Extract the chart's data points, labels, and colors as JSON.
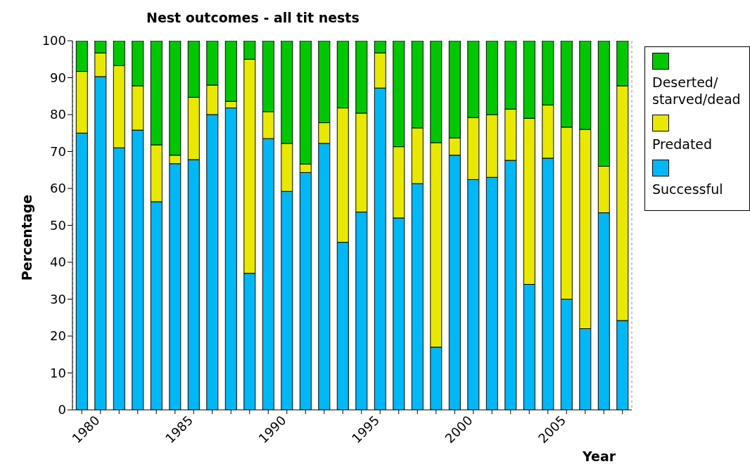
{
  "chart_data": {
    "type": "bar",
    "title": "Nest outcomes - all tit nests",
    "xlabel": "Year",
    "ylabel": "Percentage",
    "categories": [
      null,
      "1980",
      null,
      null,
      null,
      null,
      "1985",
      null,
      null,
      null,
      null,
      "1990",
      null,
      null,
      null,
      null,
      "1995",
      null,
      null,
      null,
      null,
      "2000",
      null,
      null,
      null,
      null,
      "2005",
      null,
      null,
      null
    ],
    "series": [
      {
        "name": "Successful",
        "color": "#00b8f5",
        "values": [
          75,
          90.3,
          71,
          75.8,
          56.4,
          66.7,
          67.8,
          80,
          81.8,
          37,
          73.5,
          59.2,
          64.3,
          72.2,
          45.4,
          53.6,
          87.2,
          52,
          61.3,
          17,
          69,
          62.4,
          63,
          67.6,
          34,
          68.2,
          30,
          22,
          53.4,
          24.2
        ]
      },
      {
        "name": "Predated",
        "color": "#e8e800",
        "values": [
          16.7,
          6.4,
          22.3,
          12,
          15.4,
          2.3,
          16.9,
          8,
          1.8,
          58,
          7.3,
          13,
          2.3,
          5.6,
          36.4,
          26.8,
          9.5,
          19.3,
          15.1,
          55.4,
          4.7,
          16.8,
          17,
          13.9,
          45,
          14.4,
          46.6,
          54,
          12.6,
          63.6
        ]
      },
      {
        "name": "Deserted/ starved/dead",
        "color": "#00c800",
        "values": [
          8.3,
          3.3,
          6.7,
          12.2,
          28.2,
          31,
          15.3,
          12,
          16.4,
          5,
          19.2,
          27.8,
          33.4,
          22.2,
          18.2,
          19.6,
          3.3,
          28.7,
          23.6,
          27.6,
          26.3,
          20.8,
          20,
          18.5,
          21,
          17.4,
          23.4,
          24,
          34,
          12.2
        ]
      }
    ],
    "stacked": true,
    "ylim": [
      0,
      100
    ],
    "yticks": [
      0,
      10,
      20,
      30,
      40,
      50,
      60,
      70,
      80,
      90,
      100
    ],
    "grid": "x",
    "legend": "right"
  }
}
